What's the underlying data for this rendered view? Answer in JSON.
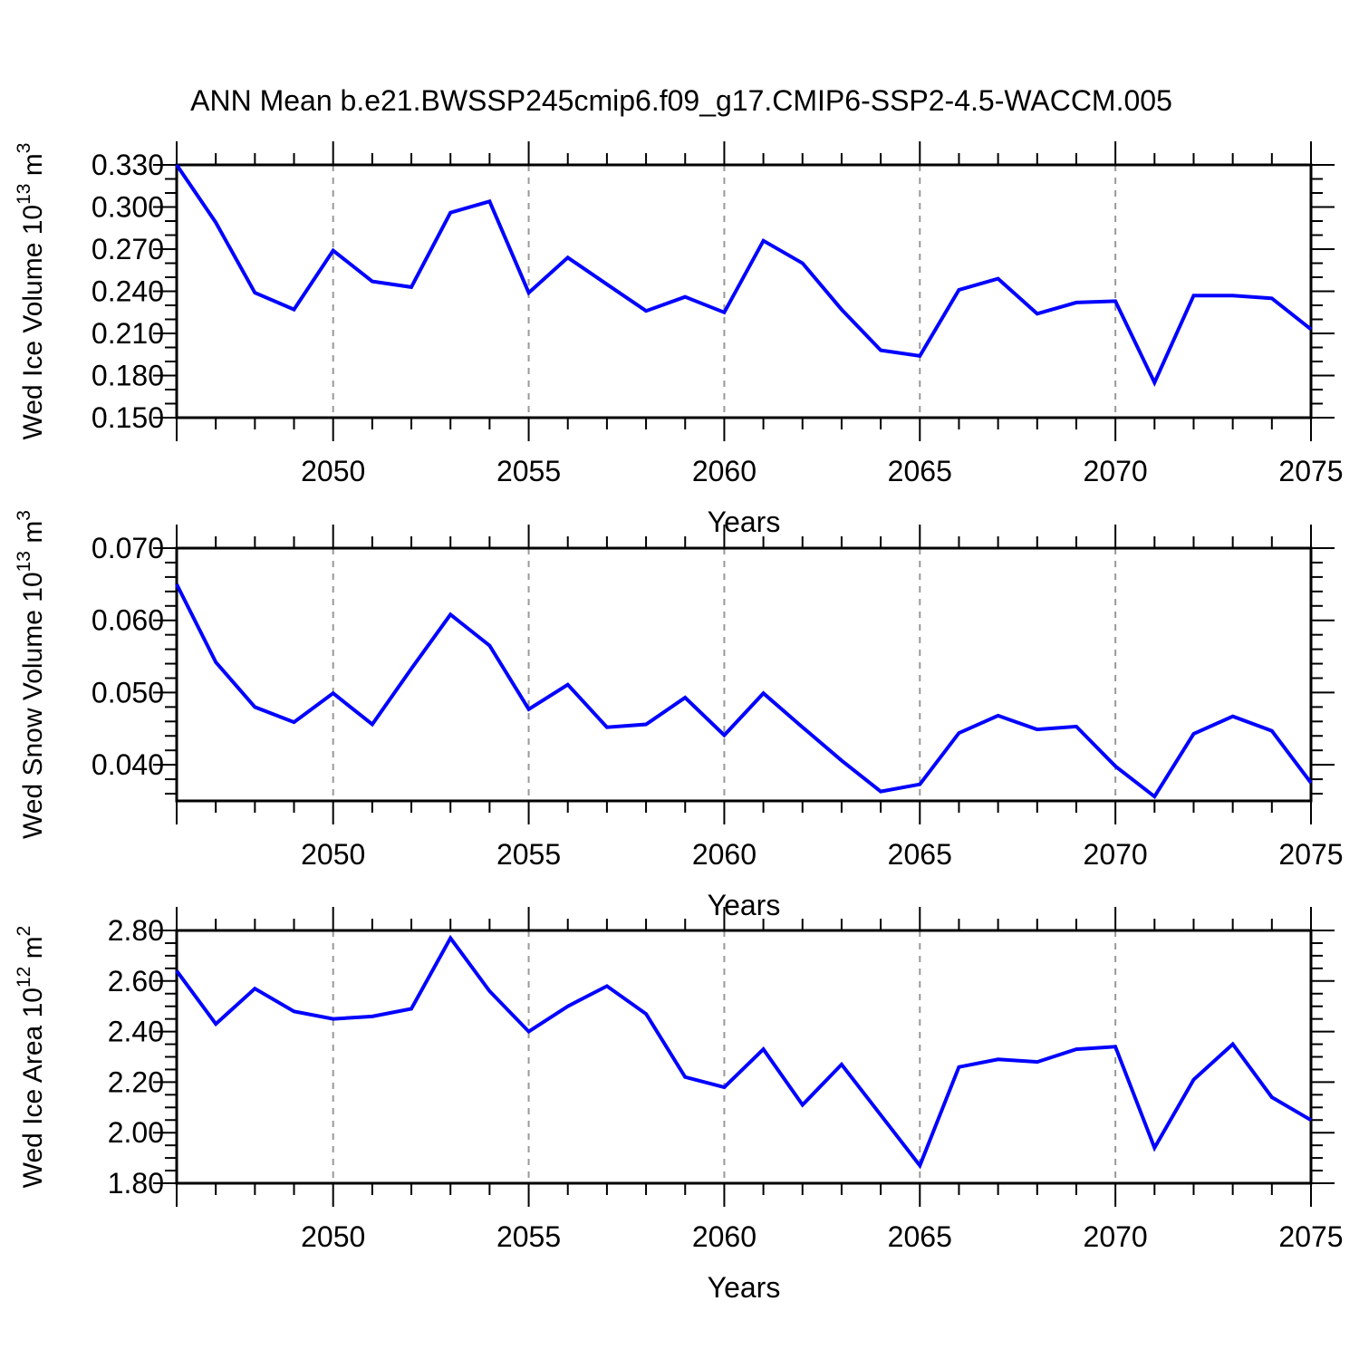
{
  "title": "ANN Mean b.e21.BWSSP245cmip6.f09_g17.CMIP6-SSP2-4.5-WACCM.005",
  "colors": {
    "line": "#0000ff",
    "grid": "#999999",
    "axis": "#000000",
    "text": "#000000"
  },
  "x_axis": {
    "label": "Years",
    "tick_labels": [
      2050,
      2055,
      2060,
      2065,
      2070,
      2075
    ]
  },
  "chart_data": [
    {
      "type": "line",
      "name": "wed-ice-volume",
      "ylabel": "Wed Ice Volume 10^{13} m^{3}",
      "xlabel": "Years",
      "xlim": [
        2046,
        2075
      ],
      "ylim": [
        0.15,
        0.33
      ],
      "xticks": [
        2050,
        2055,
        2060,
        2065,
        2070,
        2075
      ],
      "grid_x": [
        2050,
        2055,
        2060,
        2065,
        2070
      ],
      "ytick_major": 0.03,
      "ytick_minor": 0.01,
      "ytick_decimals": 3,
      "line_color": "#0000ff",
      "x": [
        2046,
        2047,
        2048,
        2049,
        2050,
        2051,
        2052,
        2053,
        2054,
        2055,
        2056,
        2057,
        2058,
        2059,
        2060,
        2061,
        2062,
        2063,
        2064,
        2065,
        2066,
        2067,
        2068,
        2069,
        2070,
        2071,
        2072,
        2073,
        2074,
        2075
      ],
      "values": [
        0.33,
        0.289,
        0.239,
        0.227,
        0.269,
        0.247,
        0.243,
        0.296,
        0.304,
        0.239,
        0.264,
        0.245,
        0.226,
        0.236,
        0.225,
        0.276,
        0.26,
        0.227,
        0.198,
        0.194,
        0.241,
        0.249,
        0.224,
        0.232,
        0.233,
        0.175,
        0.237,
        0.237,
        0.235,
        0.213
      ]
    },
    {
      "type": "line",
      "name": "wed-snow-volume",
      "ylabel": "Wed Snow Volume 10^{13} m^{3}",
      "xlabel": "Years",
      "xlim": [
        2046,
        2075
      ],
      "ylim": [
        0.035,
        0.07
      ],
      "xticks": [
        2050,
        2055,
        2060,
        2065,
        2070,
        2075
      ],
      "grid_x": [
        2050,
        2055,
        2060,
        2065,
        2070
      ],
      "ytick_major": 0.01,
      "ytick_minor": 0.002,
      "ytick_decimals": 3,
      "line_color": "#0000ff",
      "x": [
        2046,
        2047,
        2048,
        2049,
        2050,
        2051,
        2052,
        2053,
        2054,
        2055,
        2056,
        2057,
        2058,
        2059,
        2060,
        2061,
        2062,
        2063,
        2064,
        2065,
        2066,
        2067,
        2068,
        2069,
        2070,
        2071,
        2072,
        2073,
        2074,
        2075
      ],
      "values": [
        0.065,
        0.0542,
        0.048,
        0.0459,
        0.0499,
        0.0456,
        0.0533,
        0.0608,
        0.0565,
        0.0477,
        0.0511,
        0.0452,
        0.0456,
        0.0493,
        0.0441,
        0.0499,
        0.0452,
        0.0406,
        0.0363,
        0.0373,
        0.0444,
        0.0468,
        0.0449,
        0.0453,
        0.0398,
        0.0356,
        0.0443,
        0.0467,
        0.0447,
        0.0375
      ]
    },
    {
      "type": "line",
      "name": "wed-ice-area",
      "ylabel": "Wed Ice Area 10^{12} m^{2}",
      "xlabel": "Years",
      "xlim": [
        2046,
        2075
      ],
      "ylim": [
        1.8,
        2.8
      ],
      "xticks": [
        2050,
        2055,
        2060,
        2065,
        2070,
        2075
      ],
      "grid_x": [
        2050,
        2055,
        2060,
        2065,
        2070
      ],
      "ytick_major": 0.2,
      "ytick_minor": 0.05,
      "ytick_decimals": 2,
      "line_color": "#0000ff",
      "x": [
        2046,
        2047,
        2048,
        2049,
        2050,
        2051,
        2052,
        2053,
        2054,
        2055,
        2056,
        2057,
        2058,
        2059,
        2060,
        2061,
        2062,
        2063,
        2064,
        2065,
        2066,
        2067,
        2068,
        2069,
        2070,
        2071,
        2072,
        2073,
        2074,
        2075
      ],
      "values": [
        2.64,
        2.43,
        2.57,
        2.48,
        2.45,
        2.46,
        2.49,
        2.77,
        2.56,
        2.4,
        2.5,
        2.58,
        2.47,
        2.22,
        2.18,
        2.33,
        2.11,
        2.27,
        2.07,
        1.87,
        2.26,
        2.29,
        2.28,
        2.33,
        2.34,
        1.94,
        2.21,
        2.35,
        2.14,
        2.05
      ]
    }
  ]
}
